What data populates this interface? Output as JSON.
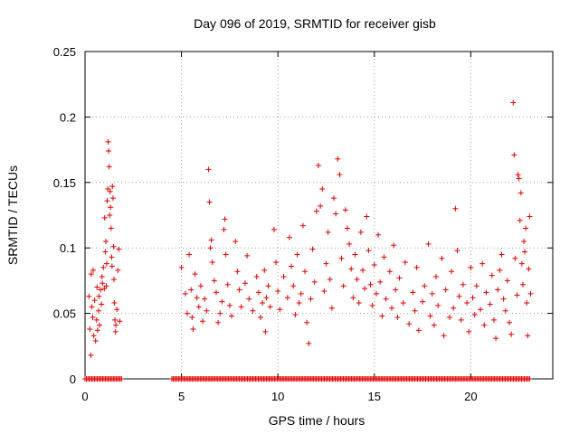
{
  "chart_data": {
    "type": "scatter",
    "title": "Day 096 of 2019, SRMTID for receiver gisb",
    "xlabel": "GPS time / hours",
    "ylabel": "SRMTID / TECUs",
    "xlim": [
      0,
      24.25
    ],
    "ylim": [
      0,
      0.25
    ],
    "x_ticks": [
      0,
      5,
      10,
      15,
      20
    ],
    "x_tick_labels": [
      "0",
      "5",
      "10",
      "15",
      "20"
    ],
    "y_ticks": [
      0,
      0.05,
      0.1,
      0.15,
      0.2,
      0.25
    ],
    "y_tick_labels": [
      "0",
      "0.05",
      "0.1",
      "0.15",
      "0.2",
      "0.25"
    ],
    "grid": true,
    "marker": "+",
    "color": "#e00000",
    "series": [
      {
        "name": "SRMTID",
        "points": [
          [
            0.2,
            0.063
          ],
          [
            0.25,
            0.038
          ],
          [
            0.3,
            0.018
          ],
          [
            0.32,
            0.08
          ],
          [
            0.35,
            0.055
          ],
          [
            0.4,
            0.047
          ],
          [
            0.42,
            0.083
          ],
          [
            0.45,
            0.033
          ],
          [
            0.5,
            0.06
          ],
          [
            0.55,
            0.029
          ],
          [
            0.6,
            0.045
          ],
          [
            0.62,
            0.07
          ],
          [
            0.65,
            0.037
          ],
          [
            0.7,
            0.052
          ],
          [
            0.72,
            0.063
          ],
          [
            0.75,
            0.041
          ],
          [
            0.8,
            0.068
          ],
          [
            0.85,
            0.057
          ],
          [
            0.88,
            0.078
          ],
          [
            0.9,
            0.073
          ],
          [
            0.95,
            0.085
          ],
          [
            1.0,
            0.069
          ],
          [
            1.02,
            0.123
          ],
          [
            1.05,
            0.097
          ],
          [
            1.08,
            0.105
          ],
          [
            1.1,
            0.071
          ],
          [
            1.12,
            0.088
          ],
          [
            1.15,
            0.136
          ],
          [
            1.18,
            0.145
          ],
          [
            1.2,
            0.181
          ],
          [
            1.22,
            0.174
          ],
          [
            1.25,
            0.162
          ],
          [
            1.28,
            0.125
          ],
          [
            1.3,
            0.143
          ],
          [
            1.32,
            0.131
          ],
          [
            1.35,
            0.115
          ],
          [
            1.38,
            0.093
          ],
          [
            1.4,
            0.086
          ],
          [
            1.42,
            0.147
          ],
          [
            1.45,
            0.138
          ],
          [
            1.48,
            0.101
          ],
          [
            1.5,
            0.076
          ],
          [
            1.52,
            0.058
          ],
          [
            1.55,
            0.045
          ],
          [
            1.58,
            0.036
          ],
          [
            1.6,
            0.041
          ],
          [
            1.65,
            0.053
          ],
          [
            1.7,
            0.083
          ],
          [
            1.75,
            0.099
          ],
          [
            1.8,
            0.044
          ],
          [
            5.0,
            0.085
          ],
          [
            5.2,
            0.065
          ],
          [
            5.3,
            0.05
          ],
          [
            5.4,
            0.095
          ],
          [
            5.5,
            0.068
          ],
          [
            5.55,
            0.047
          ],
          [
            5.6,
            0.038
          ],
          [
            5.7,
            0.08
          ],
          [
            5.8,
            0.062
          ],
          [
            5.9,
            0.055
          ],
          [
            6.0,
            0.071
          ],
          [
            6.1,
            0.044
          ],
          [
            6.2,
            0.061
          ],
          [
            6.3,
            0.052
          ],
          [
            6.4,
            0.16
          ],
          [
            6.45,
            0.135
          ],
          [
            6.5,
            0.1
          ],
          [
            6.55,
            0.106
          ],
          [
            6.6,
            0.089
          ],
          [
            6.7,
            0.075
          ],
          [
            6.8,
            0.066
          ],
          [
            6.9,
            0.043
          ],
          [
            7.0,
            0.05
          ],
          [
            7.1,
            0.059
          ],
          [
            7.2,
            0.114
          ],
          [
            7.25,
            0.122
          ],
          [
            7.3,
            0.095
          ],
          [
            7.4,
            0.072
          ],
          [
            7.5,
            0.056
          ],
          [
            7.6,
            0.048
          ],
          [
            7.8,
            0.105
          ],
          [
            7.9,
            0.082
          ],
          [
            8.0,
            0.068
          ],
          [
            8.1,
            0.055
          ],
          [
            8.3,
            0.073
          ],
          [
            8.4,
            0.094
          ],
          [
            8.5,
            0.061
          ],
          [
            8.7,
            0.052
          ],
          [
            8.9,
            0.078
          ],
          [
            9.0,
            0.066
          ],
          [
            9.1,
            0.047
          ],
          [
            9.2,
            0.058
          ],
          [
            9.3,
            0.083
          ],
          [
            9.35,
            0.036
          ],
          [
            9.4,
            0.062
          ],
          [
            9.5,
            0.071
          ],
          [
            9.6,
            0.055
          ],
          [
            9.8,
            0.114
          ],
          [
            9.9,
            0.089
          ],
          [
            10.0,
            0.067
          ],
          [
            10.1,
            0.053
          ],
          [
            10.3,
            0.078
          ],
          [
            10.5,
            0.062
          ],
          [
            10.6,
            0.108
          ],
          [
            10.7,
            0.086
          ],
          [
            10.8,
            0.071
          ],
          [
            10.9,
            0.049
          ],
          [
            11.0,
            0.095
          ],
          [
            11.1,
            0.058
          ],
          [
            11.2,
            0.065
          ],
          [
            11.3,
            0.117
          ],
          [
            11.4,
            0.082
          ],
          [
            11.5,
            0.043
          ],
          [
            11.6,
            0.027
          ],
          [
            11.7,
            0.061
          ],
          [
            11.8,
            0.099
          ],
          [
            11.9,
            0.074
          ],
          [
            12.0,
            0.128
          ],
          [
            12.1,
            0.163
          ],
          [
            12.2,
            0.132
          ],
          [
            12.3,
            0.145
          ],
          [
            12.4,
            0.067
          ],
          [
            12.5,
            0.088
          ],
          [
            12.6,
            0.112
          ],
          [
            12.7,
            0.076
          ],
          [
            12.8,
            0.054
          ],
          [
            12.9,
            0.138
          ],
          [
            13.0,
            0.126
          ],
          [
            13.1,
            0.168
          ],
          [
            13.2,
            0.156
          ],
          [
            13.3,
            0.092
          ],
          [
            13.4,
            0.071
          ],
          [
            13.5,
            0.129
          ],
          [
            13.6,
            0.115
          ],
          [
            13.7,
            0.103
          ],
          [
            13.8,
            0.084
          ],
          [
            13.9,
            0.062
          ],
          [
            14.0,
            0.095
          ],
          [
            14.1,
            0.076
          ],
          [
            14.2,
            0.058
          ],
          [
            14.3,
            0.112
          ],
          [
            14.4,
            0.083
          ],
          [
            14.5,
            0.069
          ],
          [
            14.6,
            0.124
          ],
          [
            14.7,
            0.098
          ],
          [
            14.8,
            0.072
          ],
          [
            14.9,
            0.056
          ],
          [
            15.0,
            0.087
          ],
          [
            15.1,
            0.065
          ],
          [
            15.2,
            0.11
          ],
          [
            15.3,
            0.074
          ],
          [
            15.4,
            0.048
          ],
          [
            15.5,
            0.093
          ],
          [
            15.6,
            0.061
          ],
          [
            15.8,
            0.082
          ],
          [
            15.9,
            0.054
          ],
          [
            16.0,
            0.102
          ],
          [
            16.1,
            0.068
          ],
          [
            16.2,
            0.047
          ],
          [
            16.3,
            0.077
          ],
          [
            16.5,
            0.058
          ],
          [
            16.6,
            0.089
          ],
          [
            16.8,
            0.042
          ],
          [
            17.0,
            0.066
          ],
          [
            17.1,
            0.052
          ],
          [
            17.2,
            0.085
          ],
          [
            17.3,
            0.037
          ],
          [
            17.5,
            0.059
          ],
          [
            17.6,
            0.071
          ],
          [
            17.8,
            0.103
          ],
          [
            17.9,
            0.048
          ],
          [
            18.0,
            0.065
          ],
          [
            18.1,
            0.041
          ],
          [
            18.2,
            0.078
          ],
          [
            18.3,
            0.056
          ],
          [
            18.5,
            0.092
          ],
          [
            18.6,
            0.033
          ],
          [
            18.7,
            0.068
          ],
          [
            18.9,
            0.047
          ],
          [
            19.0,
            0.082
          ],
          [
            19.1,
            0.054
          ],
          [
            19.2,
            0.13
          ],
          [
            19.3,
            0.098
          ],
          [
            19.4,
            0.063
          ],
          [
            19.5,
            0.045
          ],
          [
            19.6,
            0.072
          ],
          [
            19.8,
            0.058
          ],
          [
            19.9,
            0.036
          ],
          [
            20.0,
            0.085
          ],
          [
            20.1,
            0.062
          ],
          [
            20.2,
            0.049
          ],
          [
            20.3,
            0.071
          ],
          [
            20.5,
            0.053
          ],
          [
            20.6,
            0.088
          ],
          [
            20.7,
            0.041
          ],
          [
            20.8,
            0.066
          ],
          [
            21.0,
            0.057
          ],
          [
            21.1,
            0.079
          ],
          [
            21.2,
            0.045
          ],
          [
            21.3,
            0.031
          ],
          [
            21.4,
            0.068
          ],
          [
            21.5,
            0.083
          ],
          [
            21.6,
            0.095
          ],
          [
            21.7,
            0.061
          ],
          [
            21.8,
            0.052
          ],
          [
            21.9,
            0.075
          ],
          [
            22.0,
            0.043
          ],
          [
            22.1,
            0.034
          ],
          [
            22.2,
            0.211
          ],
          [
            22.25,
            0.171
          ],
          [
            22.3,
            0.092
          ],
          [
            22.4,
            0.064
          ],
          [
            22.45,
            0.156
          ],
          [
            22.5,
            0.153
          ],
          [
            22.55,
            0.121
          ],
          [
            22.6,
            0.142
          ],
          [
            22.65,
            0.088
          ],
          [
            22.7,
            0.072
          ],
          [
            22.75,
            0.105
          ],
          [
            22.8,
            0.097
          ],
          [
            22.85,
            0.115
          ],
          [
            22.9,
            0.058
          ],
          [
            22.95,
            0.033
          ],
          [
            23.0,
            0.084
          ],
          [
            23.05,
            0.124
          ],
          [
            23.1,
            0.065
          ]
        ]
      }
    ],
    "zero_segments": [
      [
        0.0,
        1.9
      ],
      [
        4.5,
        23.1
      ]
    ]
  }
}
